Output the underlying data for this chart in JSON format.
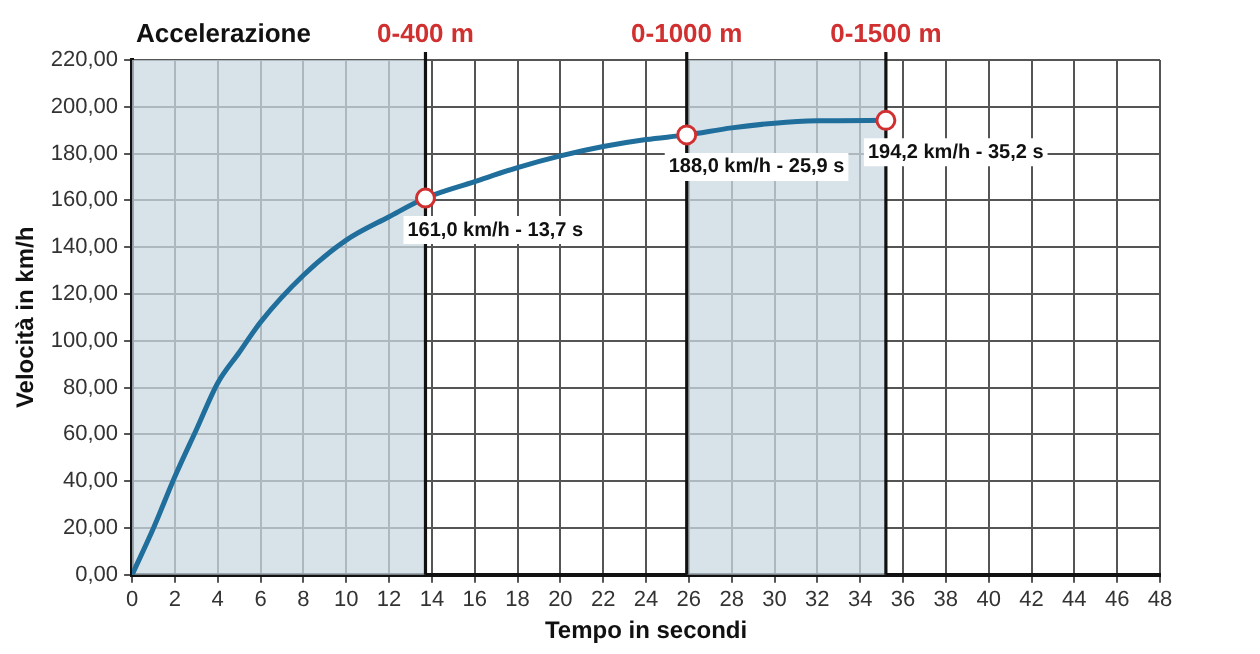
{
  "chart_data": {
    "type": "line",
    "title": "Accelerazione",
    "xlabel": "Tempo in secondi",
    "ylabel": "Velocità in km/h",
    "xlim": [
      0,
      48
    ],
    "xticks": [
      0,
      2,
      4,
      6,
      8,
      10,
      12,
      14,
      16,
      18,
      20,
      22,
      24,
      26,
      28,
      30,
      32,
      34,
      36,
      38,
      40,
      42,
      44,
      46,
      48
    ],
    "ylim": [
      0,
      220
    ],
    "yticks": [
      {
        "value": 0,
        "label": "0,00"
      },
      {
        "value": 20,
        "label": "20,00"
      },
      {
        "value": 40,
        "label": "40,00"
      },
      {
        "value": 60,
        "label": "60,00"
      },
      {
        "value": 80,
        "label": "80,00"
      },
      {
        "value": 100,
        "label": "100,00"
      },
      {
        "value": 120,
        "label": "120,00"
      },
      {
        "value": 140,
        "label": "140,00"
      },
      {
        "value": 160,
        "label": "160,00"
      },
      {
        "value": 180,
        "label": "180,00"
      },
      {
        "value": 200,
        "label": "200,00"
      },
      {
        "value": 220,
        "label": "220,00"
      }
    ],
    "series": [
      {
        "color": "#1f6e9c",
        "marker": "none",
        "x": [
          0,
          1,
          2,
          3,
          4,
          5,
          6,
          8,
          10,
          12,
          13.7,
          16,
          18,
          20,
          22,
          24,
          25.9,
          28,
          30,
          32,
          35.2
        ],
        "values": [
          0,
          20,
          42,
          62,
          82,
          95,
          108,
          128,
          143,
          153,
          161,
          168,
          174,
          179,
          183,
          186,
          188,
          191,
          193,
          194,
          194.2
        ]
      },
      {
        "type": "scatter",
        "color": "#d03030",
        "marker": "circle",
        "x": [
          13.7,
          25.9,
          35.2
        ],
        "values": [
          161,
          188,
          194.2
        ]
      }
    ],
    "bands": [
      {
        "axis": "x",
        "from": 0,
        "to": 13.7,
        "color": "#cbdae1"
      },
      {
        "axis": "x",
        "from": 25.9,
        "to": 35.2,
        "color": "#cbdae1"
      }
    ],
    "ref_lines": [
      {
        "axis": "x",
        "value": 13.7,
        "label": "0-400 m",
        "color": "#111111"
      },
      {
        "axis": "x",
        "value": 25.9,
        "label": "0-1000 m",
        "color": "#111111"
      },
      {
        "axis": "x",
        "value": 35.2,
        "label": "0-1500 m",
        "color": "#111111"
      }
    ],
    "annotations": [
      {
        "text": "161,0 km/h - 13,7 s",
        "x": 13.7,
        "y": 161
      },
      {
        "text": "188,0 km/h - 25,9 s",
        "x": 25.9,
        "y": 188
      },
      {
        "text": "194,2 km/h - 35,2 s",
        "x": 35.2,
        "y": 194.2
      }
    ],
    "grid": true,
    "legend": false
  }
}
